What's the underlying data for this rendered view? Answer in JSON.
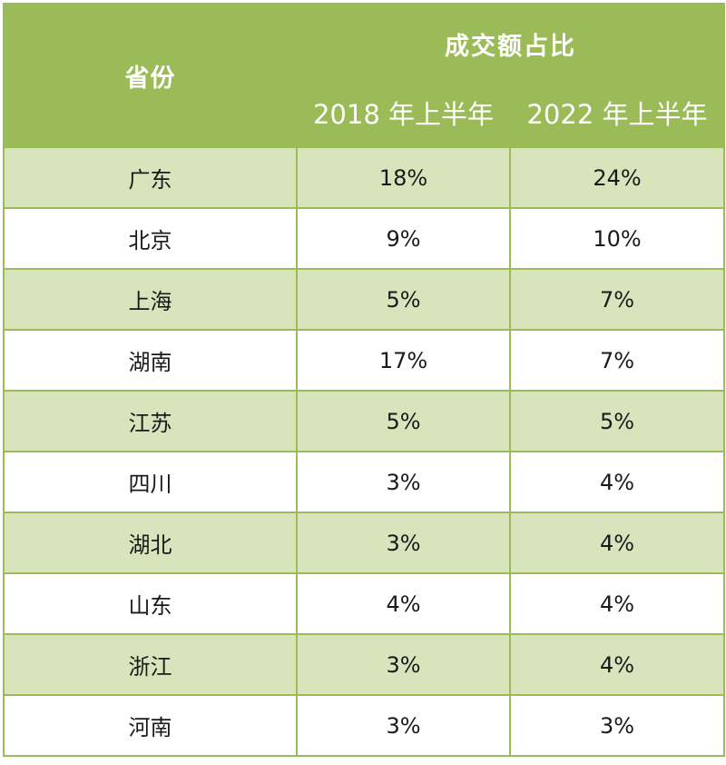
{
  "table": {
    "province_header": "省份",
    "group_header": "成交额占比",
    "period_headers": [
      "2018 年上半年",
      "2022 年上半年"
    ],
    "rows": [
      {
        "province": "广东",
        "v2018": "18%",
        "v2022": "24%"
      },
      {
        "province": "北京",
        "v2018": "9%",
        "v2022": "10%"
      },
      {
        "province": "上海",
        "v2018": "5%",
        "v2022": "7%"
      },
      {
        "province": "湖南",
        "v2018": "17%",
        "v2022": "7%"
      },
      {
        "province": "江苏",
        "v2018": "5%",
        "v2022": "5%"
      },
      {
        "province": "四川",
        "v2018": "3%",
        "v2022": "4%"
      },
      {
        "province": "湖北",
        "v2018": "3%",
        "v2022": "4%"
      },
      {
        "province": "山东",
        "v2018": "4%",
        "v2022": "4%"
      },
      {
        "province": "浙江",
        "v2018": "3%",
        "v2022": "4%"
      },
      {
        "province": "河南",
        "v2018": "3%",
        "v2022": "3%"
      }
    ]
  },
  "colors": {
    "header_bg": "#9bbb59",
    "band_bg": "#d8e4bc",
    "header_text": "#ffffff"
  }
}
